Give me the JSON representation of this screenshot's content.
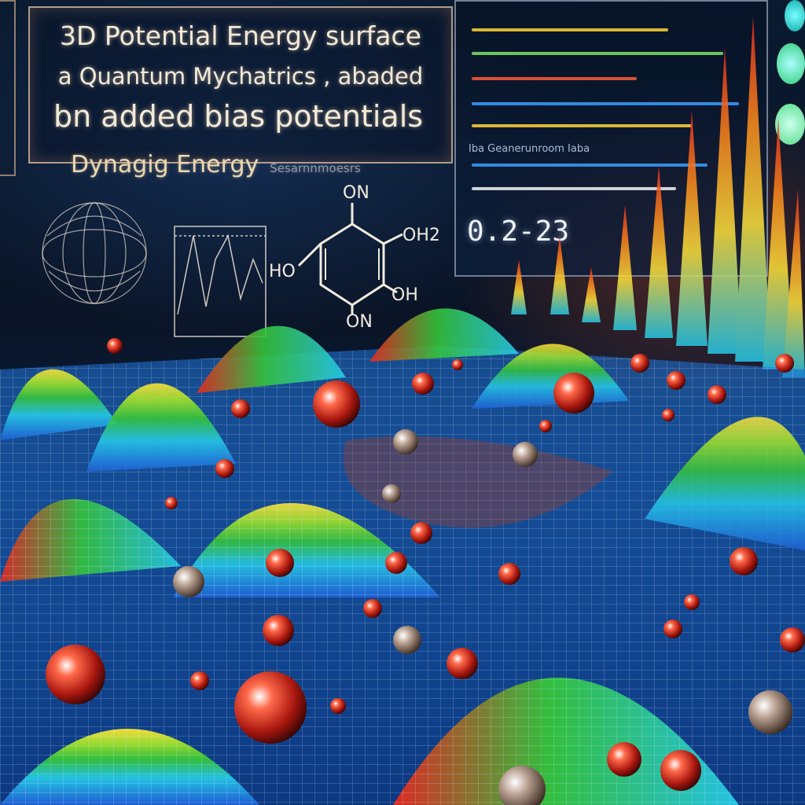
{
  "panel": {
    "line1": "3D Potential Energy surface",
    "line2": "a Quantum Mychatrics , abaded",
    "line3": "bn added  bias potentials"
  },
  "subheading": {
    "text": "Dynagig  Energy",
    "faint": "Sesarnnmoesrs"
  },
  "molecule": {
    "top": "ON",
    "right": "OH2",
    "left": "HO",
    "lower_right": "OH",
    "bottom": "ON"
  },
  "data_panel": {
    "label": "Iba Geanerunroom Iaba",
    "readout": "0.2-23"
  },
  "colors": {
    "red": "#e8281e",
    "orange": "#ff8a1c",
    "yellow": "#ffe23a",
    "green": "#35c43a",
    "cyan": "#25c8e8",
    "blue": "#1f5fd6"
  }
}
